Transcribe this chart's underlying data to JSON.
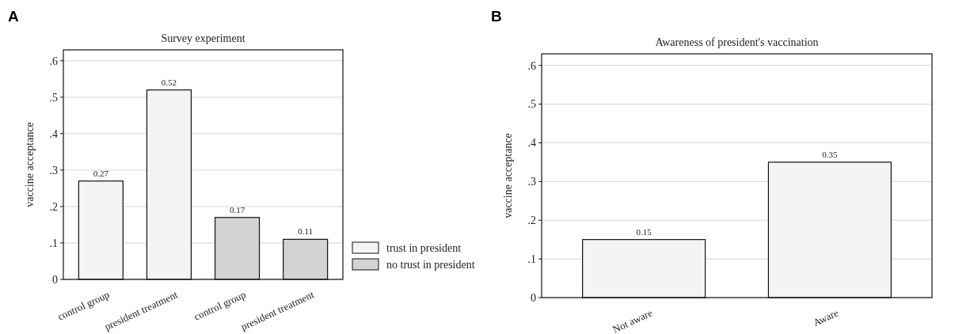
{
  "chart_data": [
    {
      "type": "bar",
      "title": "Survey experiment",
      "ylabel": "vaccine acceptance",
      "annotations": [
        "A"
      ],
      "categories": [
        "control group",
        "president treatment",
        "control group",
        "president treatment"
      ],
      "series": [
        {
          "name": "trust in president",
          "color": "#f4f4f4",
          "values": [
            0.27,
            0.52,
            null,
            null
          ]
        },
        {
          "name": "no trust in president",
          "color": "#d3d3d3",
          "values": [
            null,
            null,
            0.17,
            0.11
          ]
        }
      ],
      "ylim": [
        0,
        0.63
      ],
      "yticks": [
        0,
        {
          "value": 0.1,
          "label": ".1"
        },
        {
          "value": 0.2,
          "label": ".2"
        },
        {
          "value": 0.3,
          "label": ".3"
        },
        {
          "value": 0.4,
          "label": ".4"
        },
        {
          "value": 0.5,
          "label": ".5"
        },
        {
          "value": 0.6,
          "label": ".6"
        }
      ],
      "grid": "y",
      "legend": "right",
      "data_labels": true
    },
    {
      "type": "bar",
      "title": "Awareness of president's vaccination",
      "ylabel": "vaccine acceptance",
      "annotations": [
        "B"
      ],
      "categories": [
        "Not aware",
        "Aware"
      ],
      "series": [
        {
          "color": "#f4f4f4",
          "values": [
            0.15,
            0.35
          ]
        }
      ],
      "ylim": [
        0,
        0.63
      ],
      "yticks": [
        0,
        {
          "value": 0.1,
          "label": ".1"
        },
        {
          "value": 0.2,
          "label": ".2"
        },
        {
          "value": 0.3,
          "label": ".3"
        },
        {
          "value": 0.4,
          "label": ".4"
        },
        {
          "value": 0.5,
          "label": ".5"
        },
        {
          "value": 0.6,
          "label": ".6"
        }
      ],
      "grid": "y",
      "data_labels": true
    }
  ]
}
